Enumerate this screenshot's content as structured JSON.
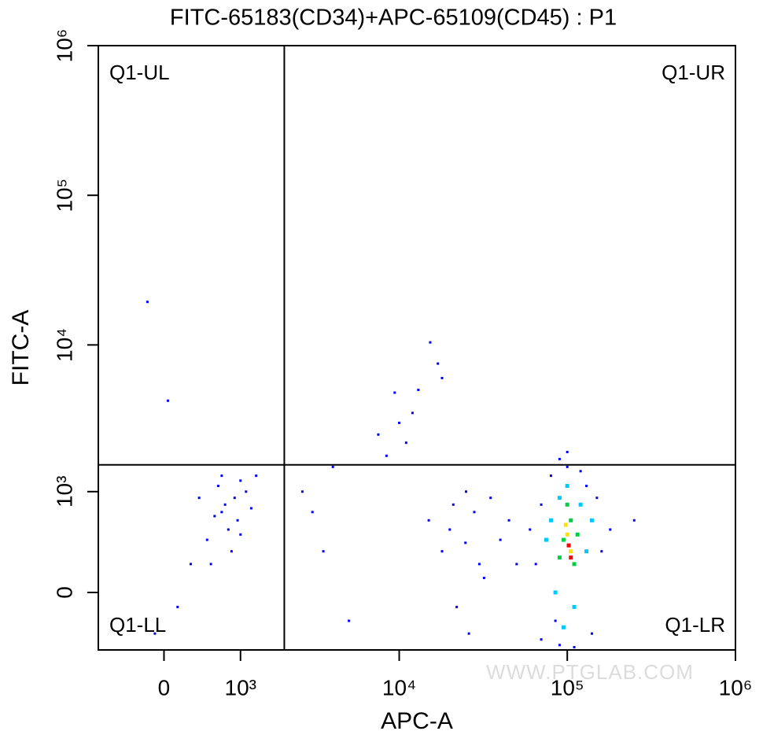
{
  "chart_data": {
    "type": "scatter",
    "title": "FITC-65183(CD34)+APC-65109(CD45) : P1",
    "x_label": "APC-A",
    "y_label": "FITC-A",
    "xscale": "biexponential",
    "yscale": "biexponential",
    "xlim": [
      -820,
      1000000
    ],
    "ylim": [
      -446,
      1000000
    ],
    "xticks": [
      0,
      {
        "value": 1000,
        "label": "10³"
      },
      {
        "value": 10000,
        "label": "10⁴"
      },
      {
        "value": 100000,
        "label": "10⁵"
      },
      {
        "value": 1000000,
        "label": "10⁶"
      }
    ],
    "yticks": [
      0,
      {
        "value": 1000,
        "label": "10³"
      },
      {
        "value": 10000,
        "label": "10⁴"
      },
      {
        "value": 100000,
        "label": "10⁵"
      },
      {
        "value": 1000000,
        "label": "10⁶"
      }
    ],
    "gates": {
      "x": 2000,
      "y": 1550,
      "labels": [
        "Q1-UL",
        "Q1-UR",
        "Q1-LL",
        "Q1-LR"
      ]
    },
    "watermark": "WWW.PTGLAB.COM",
    "series": [
      {
        "color": "#0000ff",
        "x": [
          700,
          900,
          1100,
          800,
          600,
          1000,
          750,
          500,
          1200,
          850,
          650,
          950,
          400,
          1300,
          300,
          150,
          -100,
          550,
          1000,
          700,
          -183,
          43,
          3000,
          2600,
          4000,
          5000,
          3500,
          15300,
          9400,
          8400,
          12000,
          17000,
          13000,
          7500,
          18000,
          10000,
          11000,
          24800,
          20000,
          30000,
          22000,
          28000,
          18000,
          35000,
          25000,
          40000,
          15000,
          26000,
          32000,
          21000,
          45000,
          50000,
          65000,
          70000,
          80000,
          120000,
          150000,
          160000,
          140000,
          90000,
          70000,
          110000,
          180000,
          60000,
          100000,
          85000,
          130000,
          250000,
          100000,
          90000
        ],
        "y": [
          700,
          900,
          1000,
          500,
          650,
          1200,
          800,
          400,
          750,
          300,
          1100,
          600,
          900,
          1300,
          200,
          -100,
          -300,
          200,
          450,
          1300,
          19400,
          4230,
          700,
          1000,
          1500,
          -200,
          300,
          10400,
          4790,
          1790,
          3500,
          7500,
          5000,
          2500,
          6000,
          3000,
          2200,
          373,
          500,
          200,
          -100,
          700,
          300,
          900,
          1000,
          400,
          600,
          -300,
          100,
          800,
          600,
          200,
          200,
          800,
          1300,
          1400,
          900,
          300,
          -300,
          -400,
          -350,
          -420,
          500,
          500,
          1500,
          -200,
          1100,
          600,
          1900,
          1700
        ]
      },
      {
        "color": "#00c8ff",
        "x": [
          80000,
          90000,
          120000,
          130000,
          110000,
          85000,
          100000,
          75000,
          140000,
          95000
        ],
        "y": [
          600,
          900,
          800,
          300,
          -100,
          0,
          1100,
          400,
          600,
          -250
        ]
      },
      {
        "color": "#00d040",
        "x": [
          95000,
          105000,
          110000,
          90000,
          100000,
          115000
        ],
        "y": [
          400,
          600,
          200,
          250,
          800,
          450
        ]
      },
      {
        "color": "#ffe000",
        "x": [
          100000,
          105000,
          98000
        ],
        "y": [
          450,
          300,
          550
        ]
      },
      {
        "color": "#ff0000",
        "x": [
          102000,
          105000
        ],
        "y": [
          350,
          250
        ]
      }
    ]
  }
}
